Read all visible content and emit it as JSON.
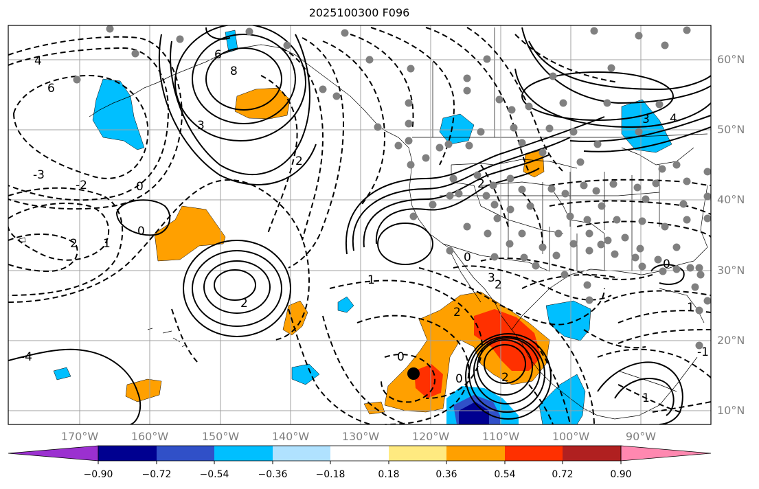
{
  "title": "2025100300 F096",
  "lat_labels": [
    "60°N",
    "50°N",
    "40°N",
    "30°N",
    "20°N",
    "10°N"
  ],
  "lon_labels": [
    "170°W",
    "160°W",
    "150°W",
    "140°W",
    "130°W",
    "120°W",
    "110°W",
    "100°W",
    "90°W"
  ],
  "colorbar": {
    "ticks": [
      "−0.90",
      "−0.72",
      "−0.54",
      "−0.36",
      "−0.18",
      "0.18",
      "0.36",
      "0.54",
      "0.72",
      "0.90"
    ],
    "colors": [
      "#9b30d0",
      "#000090",
      "#3050c8",
      "#00bfff",
      "#b0e2ff",
      "#ffffff",
      "#ffea80",
      "#ffa000",
      "#ff3000",
      "#b02020",
      "#ff88b0"
    ]
  },
  "contour_labels": [
    "4",
    "6",
    "-3",
    "-2",
    "0",
    "2",
    "1",
    "6",
    "8",
    "3",
    "2",
    "0",
    "3",
    "4",
    "2",
    "0",
    "3",
    "2",
    "2",
    "2",
    "1",
    "0",
    "0",
    "2",
    "1",
    "-1",
    "-4",
    "1",
    "0"
  ],
  "marker_color": "#000000",
  "station_color": "#808080"
}
